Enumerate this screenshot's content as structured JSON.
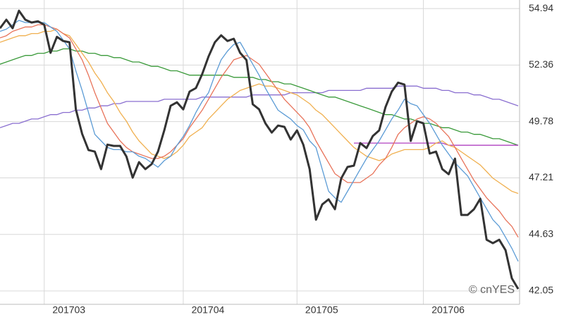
{
  "chart_data": {
    "type": "line",
    "annotation": "© cnYES",
    "categories": [
      null,
      null,
      null,
      null,
      null,
      null,
      null,
      "201703",
      null,
      null,
      null,
      null,
      null,
      null,
      null,
      null,
      null,
      null,
      null,
      null,
      null,
      null,
      null,
      null,
      null,
      null,
      null,
      null,
      null,
      "201704",
      null,
      null,
      null,
      null,
      null,
      null,
      null,
      null,
      null,
      null,
      null,
      null,
      null,
      null,
      null,
      null,
      null,
      "201705",
      null,
      null,
      null,
      null,
      null,
      null,
      null,
      null,
      null,
      null,
      null,
      null,
      null,
      null,
      null,
      null,
      null,
      null,
      null,
      "201706",
      null,
      null,
      null,
      null,
      null,
      null,
      null,
      null,
      null,
      null,
      null,
      null,
      null,
      null,
      null
    ],
    "ylim": [
      41.44,
      55.33
    ],
    "yticks": [
      42.05,
      44.63,
      47.21,
      49.78,
      52.36,
      54.94
    ],
    "grid": true,
    "series": [
      {
        "color": "#8a6fd0",
        "values": [
          49.5,
          49.6,
          49.7,
          49.7,
          49.8,
          49.9,
          49.9,
          50.0,
          50.1,
          50.1,
          50.2,
          50.2,
          50.3,
          50.3,
          50.4,
          50.4,
          50.5,
          50.5,
          50.6,
          50.6,
          50.7,
          50.7,
          50.7,
          50.7,
          50.7,
          50.7,
          50.8,
          50.8,
          50.8,
          50.8,
          50.8,
          50.8,
          50.9,
          50.9,
          50.9,
          50.9,
          50.9,
          50.9,
          50.9,
          50.9,
          51.0,
          51.0,
          51.0,
          51.0,
          51.0,
          51.0,
          51.1,
          51.1,
          51.1,
          51.1,
          51.1,
          51.1,
          51.2,
          51.2,
          51.2,
          51.2,
          51.2,
          51.2,
          51.3,
          51.3,
          51.3,
          51.3,
          51.3,
          51.4,
          51.4,
          51.4,
          51.4,
          51.3,
          51.3,
          51.3,
          51.2,
          51.2,
          51.1,
          51.1,
          51.1,
          51.0,
          51.0,
          50.9,
          50.8,
          50.8,
          50.7,
          50.6,
          50.5
        ]
      },
      {
        "color": "#3a9a3a",
        "values": [
          52.4,
          52.5,
          52.6,
          52.7,
          52.8,
          52.8,
          52.9,
          52.9,
          53.0,
          53.0,
          53.1,
          53.1,
          53.0,
          53.0,
          52.9,
          52.9,
          52.8,
          52.8,
          52.7,
          52.7,
          52.6,
          52.5,
          52.5,
          52.4,
          52.3,
          52.3,
          52.2,
          52.1,
          52.1,
          52.0,
          51.9,
          51.9,
          51.9,
          51.9,
          51.9,
          51.9,
          51.9,
          51.8,
          51.8,
          51.8,
          51.8,
          51.7,
          51.7,
          51.6,
          51.6,
          51.5,
          51.5,
          51.4,
          51.3,
          51.2,
          51.1,
          51.0,
          50.9,
          50.9,
          50.8,
          50.7,
          50.6,
          50.5,
          50.4,
          50.3,
          50.2,
          50.1,
          50.1,
          50.0,
          49.9,
          49.9,
          49.8,
          49.7,
          49.7,
          49.6,
          49.5,
          49.5,
          49.4,
          49.3,
          49.3,
          49.2,
          49.2,
          49.1,
          49.0,
          49.0,
          48.9,
          48.8,
          48.7
        ]
      },
      {
        "color": "#b040c0",
        "values": [
          null,
          null,
          null,
          null,
          null,
          null,
          null,
          null,
          null,
          null,
          null,
          null,
          null,
          null,
          null,
          null,
          null,
          null,
          null,
          null,
          null,
          null,
          null,
          null,
          null,
          null,
          null,
          null,
          null,
          null,
          null,
          null,
          null,
          null,
          null,
          null,
          null,
          null,
          null,
          null,
          null,
          null,
          null,
          null,
          null,
          null,
          null,
          null,
          null,
          null,
          null,
          null,
          null,
          null,
          null,
          null,
          48.8,
          48.8,
          48.8,
          48.8,
          48.8,
          48.8,
          48.8,
          48.8,
          48.8,
          48.8,
          48.8,
          48.8,
          48.8,
          48.8,
          48.8,
          48.7,
          48.7,
          48.7,
          48.7,
          48.7,
          48.7,
          48.7,
          48.7,
          48.7,
          48.7,
          48.7,
          48.7
        ]
      },
      {
        "color": "#f0b050",
        "values": [
          53.4,
          53.5,
          53.6,
          53.7,
          53.7,
          53.8,
          53.8,
          53.9,
          53.9,
          54.0,
          53.8,
          53.7,
          53.3,
          52.9,
          52.5,
          52.0,
          51.6,
          51.1,
          50.7,
          50.2,
          49.8,
          49.3,
          48.9,
          48.6,
          48.3,
          48.2,
          48.1,
          48.2,
          48.4,
          48.7,
          49.1,
          49.3,
          49.5,
          49.9,
          50.2,
          50.5,
          50.8,
          51.0,
          51.2,
          51.3,
          51.4,
          51.5,
          51.4,
          51.4,
          51.3,
          51.2,
          51.1,
          51.0,
          50.8,
          50.6,
          50.3,
          50.1,
          49.8,
          49.5,
          49.2,
          48.9,
          48.6,
          48.4,
          48.2,
          48.1,
          48.0,
          48.1,
          48.3,
          48.4,
          48.5,
          48.5,
          48.5,
          48.5,
          48.6,
          48.8,
          48.9,
          48.7,
          48.6,
          48.4,
          48.2,
          48.0,
          47.8,
          47.5,
          47.2,
          47.0,
          46.8,
          46.6,
          46.5
        ]
      },
      {
        "color": "#e8735a",
        "values": [
          53.6,
          53.7,
          53.9,
          54.0,
          54.1,
          54.1,
          54.2,
          54.2,
          54.1,
          54.0,
          53.8,
          53.6,
          53.1,
          52.6,
          51.9,
          51.1,
          50.4,
          49.7,
          49.3,
          48.9,
          48.6,
          48.4,
          48.3,
          48.2,
          48.1,
          48.1,
          48.2,
          48.4,
          48.7,
          49.0,
          49.5,
          49.9,
          50.3,
          50.8,
          51.3,
          51.8,
          52.2,
          52.6,
          52.7,
          52.8,
          52.6,
          52.4,
          52.0,
          51.6,
          51.2,
          50.8,
          50.5,
          50.2,
          49.9,
          49.5,
          48.9,
          48.4,
          47.9,
          47.4,
          47.2,
          47.0,
          47.0,
          47.0,
          47.2,
          47.4,
          47.8,
          48.1,
          48.6,
          49.2,
          49.5,
          49.7,
          49.9,
          50.0,
          49.9,
          49.7,
          49.4,
          49.1,
          48.6,
          48.1,
          47.6,
          47.1,
          46.7,
          46.3,
          46.0,
          45.7,
          45.3,
          45.0,
          44.5
        ]
      },
      {
        "color": "#5b9bd5",
        "values": [
          53.9,
          54.0,
          54.2,
          54.4,
          54.3,
          54.3,
          54.3,
          54.3,
          54.1,
          53.9,
          53.5,
          53.1,
          52.1,
          51.2,
          50.2,
          49.2,
          48.9,
          48.6,
          48.5,
          48.5,
          48.4,
          48.4,
          48.2,
          48.1,
          47.9,
          47.7,
          48.0,
          48.2,
          48.7,
          49.1,
          49.6,
          50.2,
          50.7,
          51.1,
          51.9,
          52.6,
          53.0,
          53.3,
          53.4,
          52.9,
          52.4,
          51.9,
          51.3,
          50.8,
          50.3,
          50.1,
          49.9,
          49.6,
          49.4,
          48.9,
          48.6,
          47.6,
          46.6,
          46.3,
          46.1,
          46.6,
          47.1,
          47.6,
          48.1,
          48.5,
          48.9,
          49.4,
          49.9,
          50.3,
          50.8,
          50.6,
          50.5,
          50.1,
          49.7,
          49.2,
          48.7,
          48.3,
          47.9,
          47.6,
          47.3,
          46.8,
          46.3,
          45.8,
          45.3,
          45.0,
          44.5,
          44.0,
          43.4
        ]
      },
      {
        "color": "#333333",
        "width": 3,
        "values": [
          54.04,
          54.43,
          54.04,
          54.84,
          54.43,
          54.3,
          54.36,
          54.2,
          52.92,
          53.65,
          53.46,
          53.4,
          50.34,
          49.22,
          48.48,
          48.41,
          47.61,
          48.73,
          48.67,
          48.67,
          48.19,
          47.22,
          47.93,
          47.61,
          47.84,
          48.41,
          49.38,
          50.5,
          50.66,
          50.34,
          51.15,
          51.31,
          51.95,
          52.75,
          53.4,
          53.72,
          53.46,
          53.56,
          52.92,
          52.59,
          50.57,
          50.34,
          49.7,
          49.28,
          49.6,
          49.54,
          48.96,
          49.38,
          48.73,
          47.61,
          45.3,
          46.0,
          46.23,
          45.78,
          47.19,
          47.71,
          47.77,
          48.8,
          48.57,
          49.12,
          49.38,
          50.44,
          51.15,
          51.56,
          51.47,
          48.9,
          49.8,
          49.7,
          48.32,
          48.41,
          47.61,
          47.38,
          48.09,
          45.52,
          45.52,
          45.78,
          46.26,
          44.39,
          44.23,
          44.39,
          43.91,
          42.63,
          42.14
        ]
      }
    ]
  }
}
